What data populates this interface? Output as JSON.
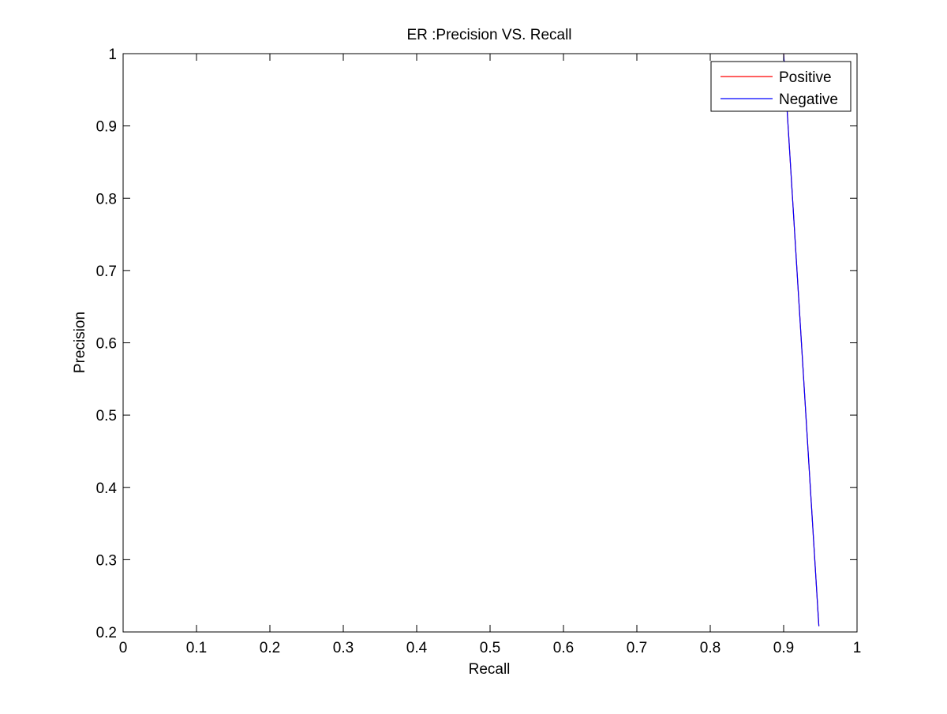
{
  "chart_data": {
    "type": "line",
    "title": "ER :Precision VS. Recall",
    "xlabel": "Recall",
    "ylabel": "Precision",
    "xlim": [
      0,
      1
    ],
    "ylim": [
      0.2,
      1
    ],
    "x_ticks": [
      "0",
      "0.1",
      "0.2",
      "0.3",
      "0.4",
      "0.5",
      "0.6",
      "0.7",
      "0.8",
      "0.9",
      "1"
    ],
    "y_ticks": [
      "0.2",
      "0.3",
      "0.4",
      "0.5",
      "0.6",
      "0.7",
      "0.8",
      "0.9",
      "1"
    ],
    "grid": false,
    "legend_position": "top-right",
    "series": [
      {
        "name": "Positive",
        "color": "#ff0000",
        "x": [
          0.9,
          0.948
        ],
        "y": [
          1.0,
          0.208
        ]
      },
      {
        "name": "Negative",
        "color": "#0000ff",
        "x": [
          0.9,
          0.948
        ],
        "y": [
          1.0,
          0.208
        ]
      }
    ]
  }
}
